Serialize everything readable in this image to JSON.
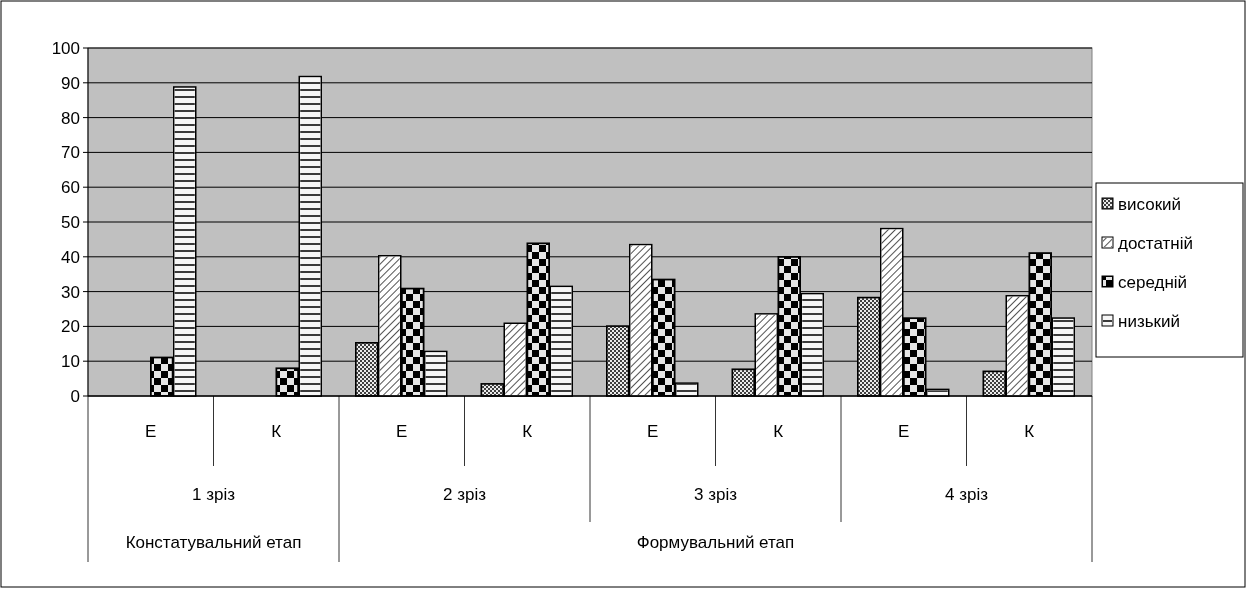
{
  "chart_data": {
    "type": "bar",
    "categories": [
      "Е",
      "К",
      "Е",
      "К",
      "Е",
      "К",
      "Е",
      "К"
    ],
    "series": [
      {
        "name": "високий",
        "color": "#404040",
        "values": [
          null,
          null,
          15.3,
          3.5,
          20.1,
          7.7,
          28.3,
          7.1
        ]
      },
      {
        "name": "достатній",
        "color": "#ffffff",
        "values": [
          null,
          null,
          40.3,
          20.9,
          43.5,
          23.6,
          48.1,
          28.8
        ]
      },
      {
        "name": "середній",
        "color": "#000000",
        "values": [
          11.1,
          8.0,
          30.9,
          43.9,
          33.5,
          40.0,
          22.4,
          41.1
        ]
      },
      {
        "name": "низький",
        "color": "#f0f0f0",
        "values": [
          88.8,
          91.8,
          12.8,
          31.5,
          3.7,
          29.4,
          1.9,
          22.4
        ]
      }
    ],
    "annotations": [
      "1 зріз",
      "2 зріз",
      "3 зріз",
      "4 зріз",
      "Констатувальний етап",
      "Формувальний етап"
    ],
    "ylim": [
      0,
      100
    ],
    "yticks": [
      0,
      10,
      20,
      30,
      40,
      50,
      60,
      70,
      80,
      90,
      100
    ],
    "grid": "y",
    "legend": "right"
  }
}
